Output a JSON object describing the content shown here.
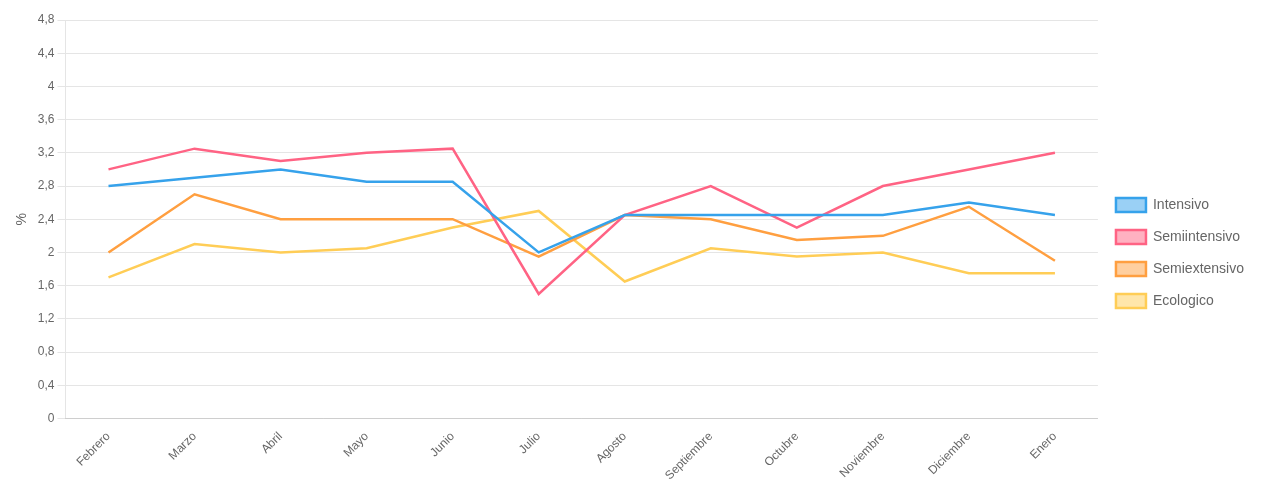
{
  "chart_data": {
    "type": "line",
    "categories": [
      "Febrero",
      "Marzo",
      "Abril",
      "Mayo",
      "Junio",
      "Julio",
      "Agosto",
      "Septiembre",
      "Octubre",
      "Noviembre",
      "Diciembre",
      "Enero"
    ],
    "series": [
      {
        "name": "Intensivo",
        "values": [
          2.8,
          2.9,
          3.0,
          2.85,
          2.85,
          2.0,
          2.45,
          2.45,
          2.45,
          2.45,
          2.6,
          2.45
        ]
      },
      {
        "name": "Semiintensivo",
        "values": [
          3.0,
          3.25,
          3.1,
          3.2,
          3.25,
          1.5,
          2.45,
          2.8,
          2.3,
          2.8,
          3.0,
          3.2
        ]
      },
      {
        "name": "Semiextensivo",
        "values": [
          2.0,
          2.7,
          2.4,
          2.4,
          2.4,
          1.95,
          2.45,
          2.4,
          2.15,
          2.2,
          2.55,
          1.9
        ]
      },
      {
        "name": "Ecologico",
        "values": [
          1.7,
          2.1,
          2.0,
          2.05,
          2.3,
          2.5,
          1.65,
          2.05,
          1.95,
          2.0,
          1.75,
          1.75
        ]
      }
    ],
    "y_label": "%",
    "ylim": [
      0,
      4.8
    ],
    "yticks": [
      0,
      {
        "value": 0.4,
        "label": "0,4"
      },
      {
        "value": 0.8,
        "label": "0,8"
      },
      {
        "value": 1.2,
        "label": "1,2"
      },
      {
        "value": 1.6,
        "label": "1,6"
      },
      2,
      {
        "value": 2.4,
        "label": "2,4"
      },
      {
        "value": 2.8,
        "label": "2,8"
      },
      {
        "value": 3.2,
        "label": "3,2"
      },
      {
        "value": 3.6,
        "label": "3,6"
      },
      4,
      {
        "value": 4.4,
        "label": "4,4"
      },
      {
        "value": 4.8,
        "label": "4,8"
      }
    ],
    "grid": true,
    "legend": "right"
  }
}
